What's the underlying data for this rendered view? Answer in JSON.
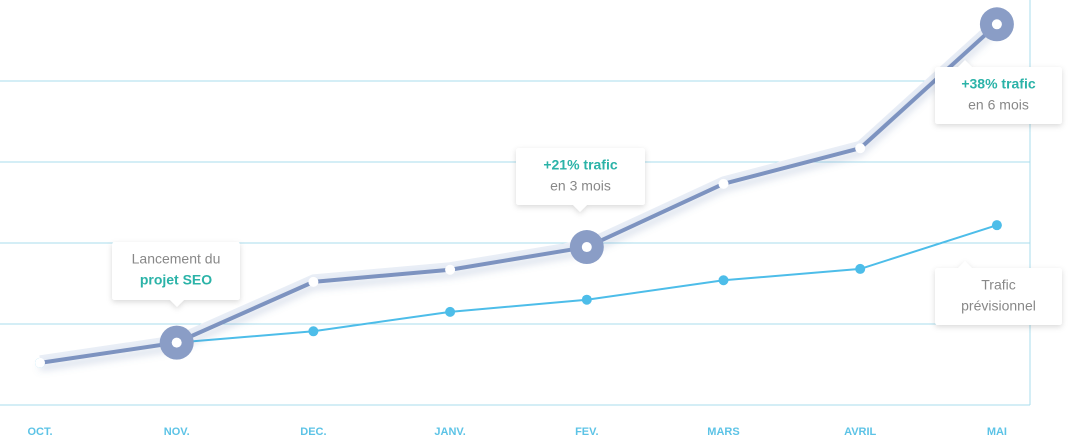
{
  "chart_data": {
    "type": "line",
    "categories": [
      "OCT.",
      "NOV.",
      "DEC.",
      "JANV.",
      "FEV.",
      "MARS",
      "AVRIL",
      "MAI"
    ],
    "series": [
      {
        "color": "#7d93c0",
        "values": [
          0.52,
          0.77,
          1.52,
          1.67,
          1.95,
          2.73,
          3.17,
          4.7
        ]
      },
      {
        "color": "#4dbde9",
        "values": [
          0.52,
          0.77,
          0.91,
          1.15,
          1.3,
          1.54,
          1.68,
          2.22
        ]
      }
    ],
    "ylim": [
      0,
      5
    ],
    "gridlines": [
      1,
      2,
      3,
      4
    ],
    "grid": true,
    "highlights": [
      1,
      4,
      7
    ],
    "annotations": [
      {
        "category": 1,
        "lines": [
          "Lancement du",
          "projet SEO"
        ]
      },
      {
        "category": 4,
        "lines": [
          "+21% trafic",
          "en 3 mois"
        ]
      },
      {
        "category": 7,
        "lines": [
          "+38% trafic",
          "en 6 mois"
        ]
      },
      {
        "category": 7,
        "lines": [
          "Trafic",
          "prévisionnel"
        ]
      }
    ]
  }
}
